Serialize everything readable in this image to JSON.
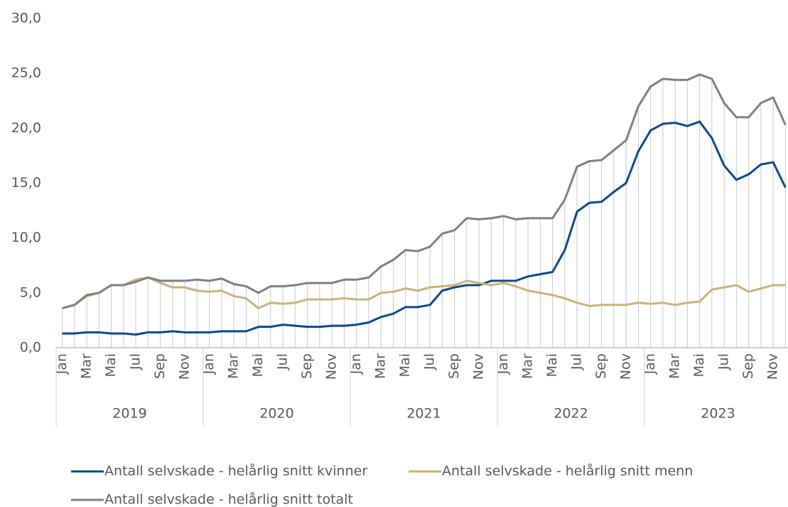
{
  "chart_data": {
    "type": "line",
    "categories": [
      "Jan",
      null,
      "Mar",
      null,
      "Mai",
      null,
      "Jul",
      null,
      "Sep",
      null,
      "Nov",
      null,
      "Jan",
      null,
      "Mar",
      null,
      "Mai",
      null,
      "Jul",
      null,
      "Sep",
      null,
      "Nov",
      null,
      "Jan",
      null,
      "Mar",
      null,
      "Mai",
      null,
      "Jul",
      null,
      "Sep",
      null,
      "Nov",
      null,
      "Jan",
      null,
      "Mar",
      null,
      "Mai",
      null,
      "Jul",
      null,
      "Sep",
      null,
      "Nov",
      null,
      "Jan",
      null,
      "Mar",
      null,
      "Mai",
      null,
      "Jul",
      null,
      "Sep",
      null,
      "Nov",
      null
    ],
    "groups": [
      "2019",
      "2020",
      "2021",
      "2022",
      "2023"
    ],
    "ylim": [
      0,
      30
    ],
    "yticks": [
      {
        "value": 0,
        "label": "0,0"
      },
      {
        "value": 5,
        "label": "5,0"
      },
      {
        "value": 10,
        "label": "10,0"
      },
      {
        "value": 15,
        "label": "15,0"
      },
      {
        "value": 20,
        "label": "20,0"
      },
      {
        "value": 25,
        "label": "25,0"
      },
      {
        "value": 30,
        "label": "30,0"
      }
    ],
    "drop_lines": true,
    "series": [
      {
        "name": "Antall selvskade - helårlig snitt kvinner",
        "color": "#0b4a8b",
        "values": [
          1.3,
          1.3,
          1.4,
          1.4,
          1.3,
          1.3,
          1.2,
          1.4,
          1.4,
          1.5,
          1.4,
          1.4,
          1.4,
          1.5,
          1.5,
          1.5,
          1.9,
          1.9,
          2.1,
          2.0,
          1.9,
          1.9,
          2.0,
          2.0,
          2.1,
          2.3,
          2.8,
          3.1,
          3.7,
          3.7,
          3.9,
          5.2,
          5.5,
          5.7,
          5.7,
          6.1,
          6.1,
          6.1,
          6.5,
          6.7,
          6.9,
          8.9,
          12.4,
          13.2,
          13.3,
          14.2,
          15.0,
          17.9,
          19.8,
          20.4,
          20.5,
          20.2,
          20.6,
          19.1,
          16.6,
          15.3,
          15.8,
          16.7,
          16.9,
          14.6
        ]
      },
      {
        "name": "Antall selvskade - helårlig snitt menn",
        "color": "#c9b27c",
        "values": [
          3.6,
          3.9,
          4.7,
          5.0,
          5.7,
          5.7,
          6.2,
          6.4,
          5.9,
          5.5,
          5.5,
          5.2,
          5.1,
          5.2,
          4.7,
          4.5,
          3.6,
          4.1,
          4.0,
          4.1,
          4.4,
          4.4,
          4.4,
          4.5,
          4.4,
          4.4,
          5.0,
          5.1,
          5.4,
          5.2,
          5.5,
          5.6,
          5.7,
          6.1,
          5.9,
          5.7,
          5.9,
          5.6,
          5.2,
          5.0,
          4.8,
          4.5,
          4.1,
          3.8,
          3.9,
          3.9,
          3.9,
          4.1,
          4.0,
          4.1,
          3.9,
          4.1,
          4.2,
          5.3,
          5.5,
          5.7,
          5.1,
          5.4,
          5.7,
          5.7
        ]
      },
      {
        "name": "Antall selvskade - helårlig snitt totalt",
        "color": "#808080",
        "values": [
          3.6,
          3.9,
          4.8,
          5.0,
          5.7,
          5.7,
          6.0,
          6.4,
          6.1,
          6.1,
          6.1,
          6.2,
          6.1,
          6.3,
          5.8,
          5.6,
          5.0,
          5.6,
          5.6,
          5.7,
          5.9,
          5.9,
          5.9,
          6.2,
          6.2,
          6.4,
          7.4,
          8.0,
          8.9,
          8.8,
          9.2,
          10.4,
          10.7,
          11.8,
          11.7,
          11.8,
          12.0,
          11.7,
          11.8,
          11.8,
          11.8,
          13.5,
          16.5,
          17.0,
          17.1,
          18.0,
          18.9,
          22.0,
          23.8,
          24.5,
          24.4,
          24.4,
          24.9,
          24.5,
          22.3,
          21.0,
          21.0,
          22.3,
          22.8,
          20.3
        ]
      }
    ]
  }
}
